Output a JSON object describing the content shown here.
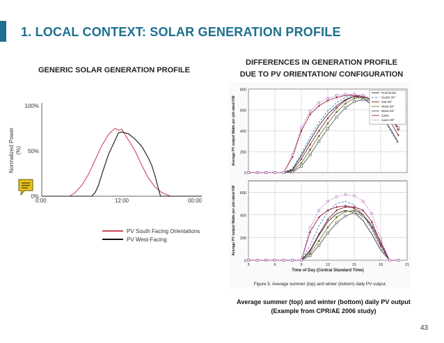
{
  "colors": {
    "accent": "#1d6f8f",
    "red_series": "#c94a5a",
    "black_series": "#111111",
    "note_icon": "#e8c21a"
  },
  "slide": {
    "title_number": "1.",
    "title_text": "LOCAL CONTEXT: SOLAR GENERATION PROFILE",
    "generic_title": "GENERIC SOLAR GENERATION PROFILE",
    "diff_title_line1": "DIFFERENCES IN GENERATION PROFILE",
    "diff_title_line2": "DUE TO PV ORIENTATION/ CONFIGURATION",
    "caption_line1": "Average summer (top) and winter (bottom) daily PV output",
    "caption_line2": "(Example from CPR/AE 2006 study)",
    "page_number": "43",
    "note_icon": "note-icon"
  },
  "chart_data": [
    {
      "type": "line",
      "title": "GENERIC SOLAR GENERATION PROFILE",
      "ylabel": "Normalized Power (%)",
      "xlabel": "",
      "x_ticks": [
        "0:00",
        "12:00",
        "00:00"
      ],
      "y_ticks": [
        "0%",
        "50%",
        "100%"
      ],
      "xlim": [
        0,
        24
      ],
      "ylim": [
        0,
        100
      ],
      "grid": false,
      "legend_position": "bottom",
      "series": [
        {
          "name": "PV South Facing Orientations",
          "color": "#c94a5a",
          "x": [
            0,
            4.2,
            5,
            6,
            7,
            8,
            9,
            10,
            10.5,
            11,
            11.5,
            12,
            12.5,
            13,
            13.5,
            14,
            14.5,
            15,
            16,
            17,
            18,
            19,
            19.3,
            24
          ],
          "y": [
            0,
            0,
            4,
            12,
            24,
            40,
            56,
            68,
            72,
            75,
            73,
            74,
            68,
            62,
            56,
            50,
            42,
            34,
            20,
            10,
            4,
            1,
            0,
            0
          ]
        },
        {
          "name": "PV West-Facing",
          "color": "#111111",
          "x": [
            0,
            7.5,
            8,
            8.5,
            9,
            10,
            11,
            11.5,
            12,
            12.5,
            13,
            14,
            15,
            16,
            16.5,
            17,
            17.5,
            17.8,
            24
          ],
          "y": [
            0,
            0,
            4,
            12,
            24,
            46,
            62,
            70,
            71,
            70,
            69,
            63,
            55,
            42,
            34,
            22,
            8,
            0,
            0
          ]
        }
      ]
    },
    {
      "type": "line",
      "title": "Figure 5.  Average summer (top) and winter (bottom) daily PV output.",
      "panel": "summer (top)",
      "ylabel": "Average PV output Watts per pkt-rated KW",
      "xlabel": "",
      "y_ticks": [
        0,
        200,
        400,
        600,
        800
      ],
      "xlim": [
        3,
        21
      ],
      "ylim": [
        0,
        800
      ],
      "grid": true,
      "legend_position": "top-right",
      "legend": [
        "Horizontal",
        "South-30°",
        "SW-30°",
        "West-30°",
        "West-45°",
        "1axis",
        "1axis-30°"
      ],
      "x": [
        3,
        4,
        5,
        6,
        7,
        8,
        9,
        10,
        11,
        12,
        13,
        14,
        15,
        16,
        17,
        18,
        19,
        20
      ],
      "series": [
        {
          "name": "Horizontal",
          "color": "#333333",
          "values": [
            0,
            0,
            0,
            0,
            0,
            30,
            160,
            310,
            450,
            560,
            640,
            700,
            730,
            710,
            650,
            560,
            430,
            290
          ]
        },
        {
          "name": "South-30°",
          "color": "#3a7fc0",
          "values": [
            0,
            0,
            0,
            0,
            0,
            40,
            180,
            340,
            480,
            590,
            670,
            720,
            740,
            720,
            660,
            560,
            420,
            270
          ]
        },
        {
          "name": "SW-30°",
          "color": "#8a2a40",
          "values": [
            0,
            0,
            0,
            0,
            0,
            20,
            130,
            270,
            400,
            520,
            620,
            690,
            730,
            730,
            690,
            610,
            500,
            360
          ]
        },
        {
          "name": "West-30°",
          "color": "#6a7a30",
          "values": [
            0,
            0,
            0,
            0,
            0,
            10,
            90,
            220,
            350,
            470,
            580,
            660,
            710,
            720,
            700,
            640,
            540,
            410
          ]
        },
        {
          "name": "West-45°",
          "color": "#555555",
          "values": [
            0,
            0,
            0,
            0,
            0,
            5,
            60,
            170,
            300,
            420,
            530,
            620,
            680,
            700,
            690,
            640,
            550,
            430
          ]
        },
        {
          "name": "1axis",
          "color": "#9b2040",
          "values": [
            0,
            0,
            0,
            0,
            0,
            150,
            400,
            560,
            640,
            690,
            720,
            740,
            740,
            730,
            700,
            650,
            560,
            420
          ]
        },
        {
          "name": "1axis-30°",
          "color": "#b070c8",
          "values": [
            0,
            0,
            0,
            0,
            0,
            170,
            430,
            590,
            670,
            710,
            740,
            750,
            750,
            740,
            710,
            660,
            570,
            430
          ]
        }
      ]
    },
    {
      "type": "line",
      "panel": "winter (bottom)",
      "ylabel": "Average PV output Watts per pkt-rated KW",
      "xlabel": "Time of Day (Central Standard Time)",
      "x_ticks": [
        3,
        6,
        9,
        12,
        15,
        18,
        21
      ],
      "y_ticks": [
        0,
        200,
        400,
        600
      ],
      "xlim": [
        3,
        21
      ],
      "ylim": [
        0,
        700
      ],
      "grid": true,
      "x": [
        3,
        4,
        5,
        6,
        7,
        8,
        9,
        10,
        11,
        12,
        13,
        14,
        15,
        16,
        17,
        18,
        19,
        20
      ],
      "series": [
        {
          "name": "Horizontal",
          "color": "#333333",
          "values": [
            0,
            0,
            0,
            0,
            0,
            0,
            0,
            80,
            220,
            340,
            410,
            440,
            420,
            350,
            230,
            90,
            0,
            0
          ]
        },
        {
          "name": "South-30°",
          "color": "#3a7fc0",
          "values": [
            0,
            0,
            0,
            0,
            0,
            0,
            0,
            130,
            300,
            430,
            500,
            520,
            490,
            400,
            270,
            110,
            0,
            0
          ]
        },
        {
          "name": "SW-30°",
          "color": "#8a2a40",
          "values": [
            0,
            0,
            0,
            0,
            0,
            0,
            0,
            90,
            230,
            360,
            440,
            470,
            460,
            400,
            290,
            130,
            0,
            0
          ]
        },
        {
          "name": "West-30°",
          "color": "#6a7a30",
          "values": [
            0,
            0,
            0,
            0,
            0,
            0,
            0,
            60,
            170,
            290,
            380,
            430,
            440,
            400,
            310,
            150,
            0,
            0
          ]
        },
        {
          "name": "West-45°",
          "color": "#555555",
          "values": [
            0,
            0,
            0,
            0,
            0,
            0,
            0,
            40,
            130,
            240,
            330,
            390,
            420,
            390,
            310,
            160,
            0,
            0
          ]
        },
        {
          "name": "1axis",
          "color": "#9b2040",
          "values": [
            0,
            0,
            0,
            0,
            0,
            0,
            0,
            250,
            380,
            440,
            470,
            480,
            470,
            440,
            340,
            150,
            0,
            0
          ]
        },
        {
          "name": "1axis-30°",
          "color": "#b070c8",
          "values": [
            0,
            0,
            0,
            0,
            0,
            0,
            0,
            290,
            440,
            520,
            560,
            580,
            570,
            520,
            410,
            190,
            0,
            0
          ]
        }
      ]
    }
  ]
}
